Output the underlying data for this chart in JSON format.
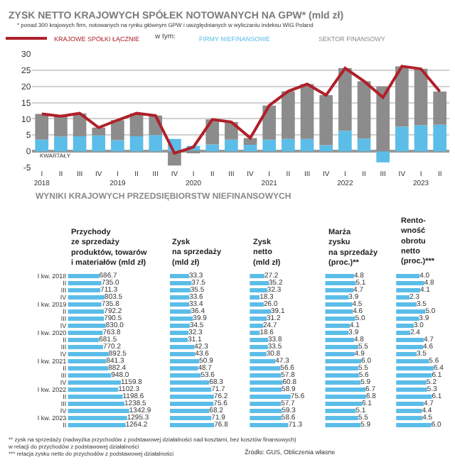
{
  "chart_data": [
    {
      "type": "bar",
      "title": "ZYSK NETTO KRAJOWYCH SPÓŁEK NOTOWANYCH NA GPW* (mld zł)",
      "subtitle": "* ponad 300 krajowych firm, notowanych na rynku głównym GPW i uwzględnianych w wyliczaniu indeksu WIG Poland",
      "xlabel": "KWARTAŁY",
      "categories": [
        "I\n2018",
        "II",
        "III",
        "IV",
        "I\n2019",
        "II",
        "III",
        "IV",
        "I\n2020",
        "II",
        "III",
        "IV",
        "I\n2021",
        "II",
        "III",
        "IV",
        "I\n2022",
        "II",
        "III",
        "IV",
        "I\n2023",
        "II"
      ],
      "stacked": true,
      "grid": "y",
      "legend": "top",
      "marker": "none",
      "ylim": [
        -5,
        30
      ],
      "yticks": [
        -5,
        0,
        5,
        10,
        15,
        20,
        25,
        30
      ],
      "annotations": [
        "w tym:"
      ],
      "series": [
        {
          "type": "line",
          "name": "KRAJOWE SPÓŁKI ŁĄCZNIE",
          "color": "#b0202a",
          "values": [
            11.5,
            10.8,
            11.7,
            7.3,
            9.6,
            11.7,
            11.0,
            -0.6,
            1.3,
            9.8,
            9.0,
            4.1,
            14.1,
            18.5,
            20.7,
            17.3,
            25.6,
            21.6,
            16.6,
            26.2,
            25.4,
            18.4
          ]
        },
        {
          "type": "bar",
          "name": "FIRMY NIEFINANSOWE",
          "color": "#5bbde8",
          "values": [
            3.6,
            4.5,
            4.6,
            4.9,
            3.4,
            4.6,
            5.0,
            3.8,
            1.7,
            2.1,
            3.6,
            2.0,
            3.6,
            3.8,
            3.8,
            1.9,
            6.3,
            3.9,
            -3.4,
            7.6,
            8.0,
            8.2
          ]
        },
        {
          "type": "bar",
          "name": "SEKTOR FINANSOWY",
          "color": "#8c8c8c",
          "values": [
            7.9,
            6.3,
            7.1,
            2.4,
            6.2,
            7.1,
            6.0,
            -4.4,
            -0.4,
            7.7,
            5.4,
            2.1,
            10.5,
            14.7,
            16.9,
            15.4,
            19.3,
            17.7,
            20.0,
            18.6,
            17.4,
            10.2
          ]
        }
      ]
    },
    {
      "type": "bar",
      "orientation": "horizontal",
      "title": "Przychody\nze sprzedaży\nproduktów, towarów\ni materiałów (mld zł)",
      "tick_labels": "y",
      "value_labels": [
        "686.7",
        "735.0",
        "711.3",
        "803.5",
        "735.8",
        "792.2",
        "790.5",
        "830.0",
        "763.8",
        "681.5",
        "770.2",
        "892.5",
        "841.3",
        "882.4",
        "948.0",
        "1159.8",
        "1102.3",
        "1198.6",
        "1238.5",
        "1342.9",
        "1295.3",
        "1264.2"
      ],
      "color": "#5bbde8",
      "annotations": [
        "WYNIKI KRAJOWYCH PRZEDSIĘBIORSTW NIEFINANSOWYCH",
        "** zysk na sprzedaży (nadwyżka przychodów z podstawowej działalności nad kosztami, bez kosztów finansowych)\nw relacji do przychodów z podstawowej działalności",
        "*** relacja zysku netto do przychodów z podstawowej działalności"
      ],
      "categories": [
        "I kw. 2018",
        "II",
        "III",
        "IV",
        "I kw. 2019",
        "II",
        "III",
        "IV",
        "I kw. 2020",
        "II",
        "III",
        "IV",
        "I kw. 2021",
        "II",
        "III",
        "IV",
        "I kw. 2022",
        "II",
        "III",
        "IV",
        "I kw. 2023",
        "II"
      ],
      "values": [
        686.7,
        735.0,
        711.3,
        803.5,
        735.8,
        792.2,
        790.5,
        830.0,
        763.8,
        681.5,
        770.2,
        892.5,
        841.3,
        882.4,
        948.0,
        1159.8,
        1102.3,
        1198.6,
        1238.5,
        1342.9,
        1295.3,
        1264.2
      ]
    },
    {
      "type": "bar",
      "orientation": "horizontal",
      "title": "Zysk\nna sprzedaży\n(mld zł)",
      "value_labels": [
        "33.3",
        "37.5",
        "35.5",
        "33.6",
        "33.4",
        "36.4",
        "39.9",
        "34.5",
        "32.3",
        "31.1",
        "42.3",
        "43.6",
        "50.9",
        "48.7",
        "53.6",
        "68.3",
        "71.7",
        "76.2",
        "75.6",
        "68.2",
        "71.9",
        "76.8"
      ],
      "color": "#5bbde8",
      "values": [
        33.3,
        37.5,
        35.5,
        33.6,
        33.4,
        36.4,
        39.9,
        34.5,
        32.3,
        31.1,
        42.3,
        43.6,
        50.9,
        48.7,
        53.6,
        68.3,
        71.7,
        76.2,
        75.6,
        68.2,
        71.9,
        76.8
      ]
    },
    {
      "type": "bar",
      "orientation": "horizontal",
      "title": "Zysk\nnetto\n(mld zł)",
      "value_labels": [
        "27.2",
        "35.2",
        "32.3",
        "18.3",
        "26.0",
        "39.1",
        "31.2",
        "24.7",
        "18.6",
        "33.8",
        "33.5",
        "30.8",
        "47.3",
        "56.6",
        "57.8",
        "60.8",
        "58.9",
        "75.6",
        "57.7",
        "59.3",
        "58.6",
        "71.3"
      ],
      "color": "#5bbde8",
      "values": [
        27.2,
        35.2,
        32.3,
        18.3,
        26.0,
        39.1,
        31.2,
        24.7,
        18.6,
        33.8,
        33.5,
        30.8,
        47.3,
        56.6,
        57.8,
        60.8,
        58.9,
        75.6,
        57.7,
        59.3,
        58.6,
        71.3
      ]
    },
    {
      "type": "bar",
      "orientation": "horizontal",
      "title": "Marża\nzysku\nna sprzedaży\n(proc.)**",
      "value_labels": [
        "4.8",
        "5.1",
        "4.7",
        "3.9",
        "4.5",
        "4.6",
        "5.0",
        "4.1",
        "3.9",
        "4.8",
        "5.5",
        "4.9",
        "6.0",
        "5.5",
        "5.6",
        "5.9",
        "6.7",
        "6.8",
        "6.1",
        "5.1",
        "5.5",
        "5.9"
      ],
      "color": "#5bbde8",
      "values": [
        4.8,
        5.1,
        4.7,
        3.9,
        4.5,
        4.6,
        5.0,
        4.1,
        3.9,
        4.8,
        5.5,
        4.9,
        6.0,
        5.5,
        5.6,
        5.9,
        6.7,
        6.8,
        6.1,
        5.1,
        5.5,
        5.9
      ]
    },
    {
      "type": "bar",
      "orientation": "horizontal",
      "title": "Rento-\nwność\nobrotu\nnetto\n(proc.)***",
      "value_labels": [
        "4.0",
        "4.8",
        "4.1",
        "2.3",
        "3.5",
        "5.0",
        "3.9",
        "3.0",
        "2.4",
        "4.7",
        "4.6",
        "3.5",
        "5.6",
        "6.4",
        "6.1",
        "5.2",
        "5.3",
        "6.1",
        "4.7",
        "4.4",
        "4.5",
        "6.0"
      ],
      "color": "#5bbde8",
      "annotations": [
        "Źródło: GUS, Obliczenia własne"
      ],
      "values": [
        4.0,
        4.8,
        4.1,
        2.3,
        3.5,
        5.0,
        3.9,
        3.0,
        2.4,
        4.7,
        4.6,
        3.5,
        5.6,
        6.4,
        6.1,
        5.2,
        5.3,
        6.1,
        4.7,
        4.4,
        4.5,
        6.0
      ]
    }
  ]
}
